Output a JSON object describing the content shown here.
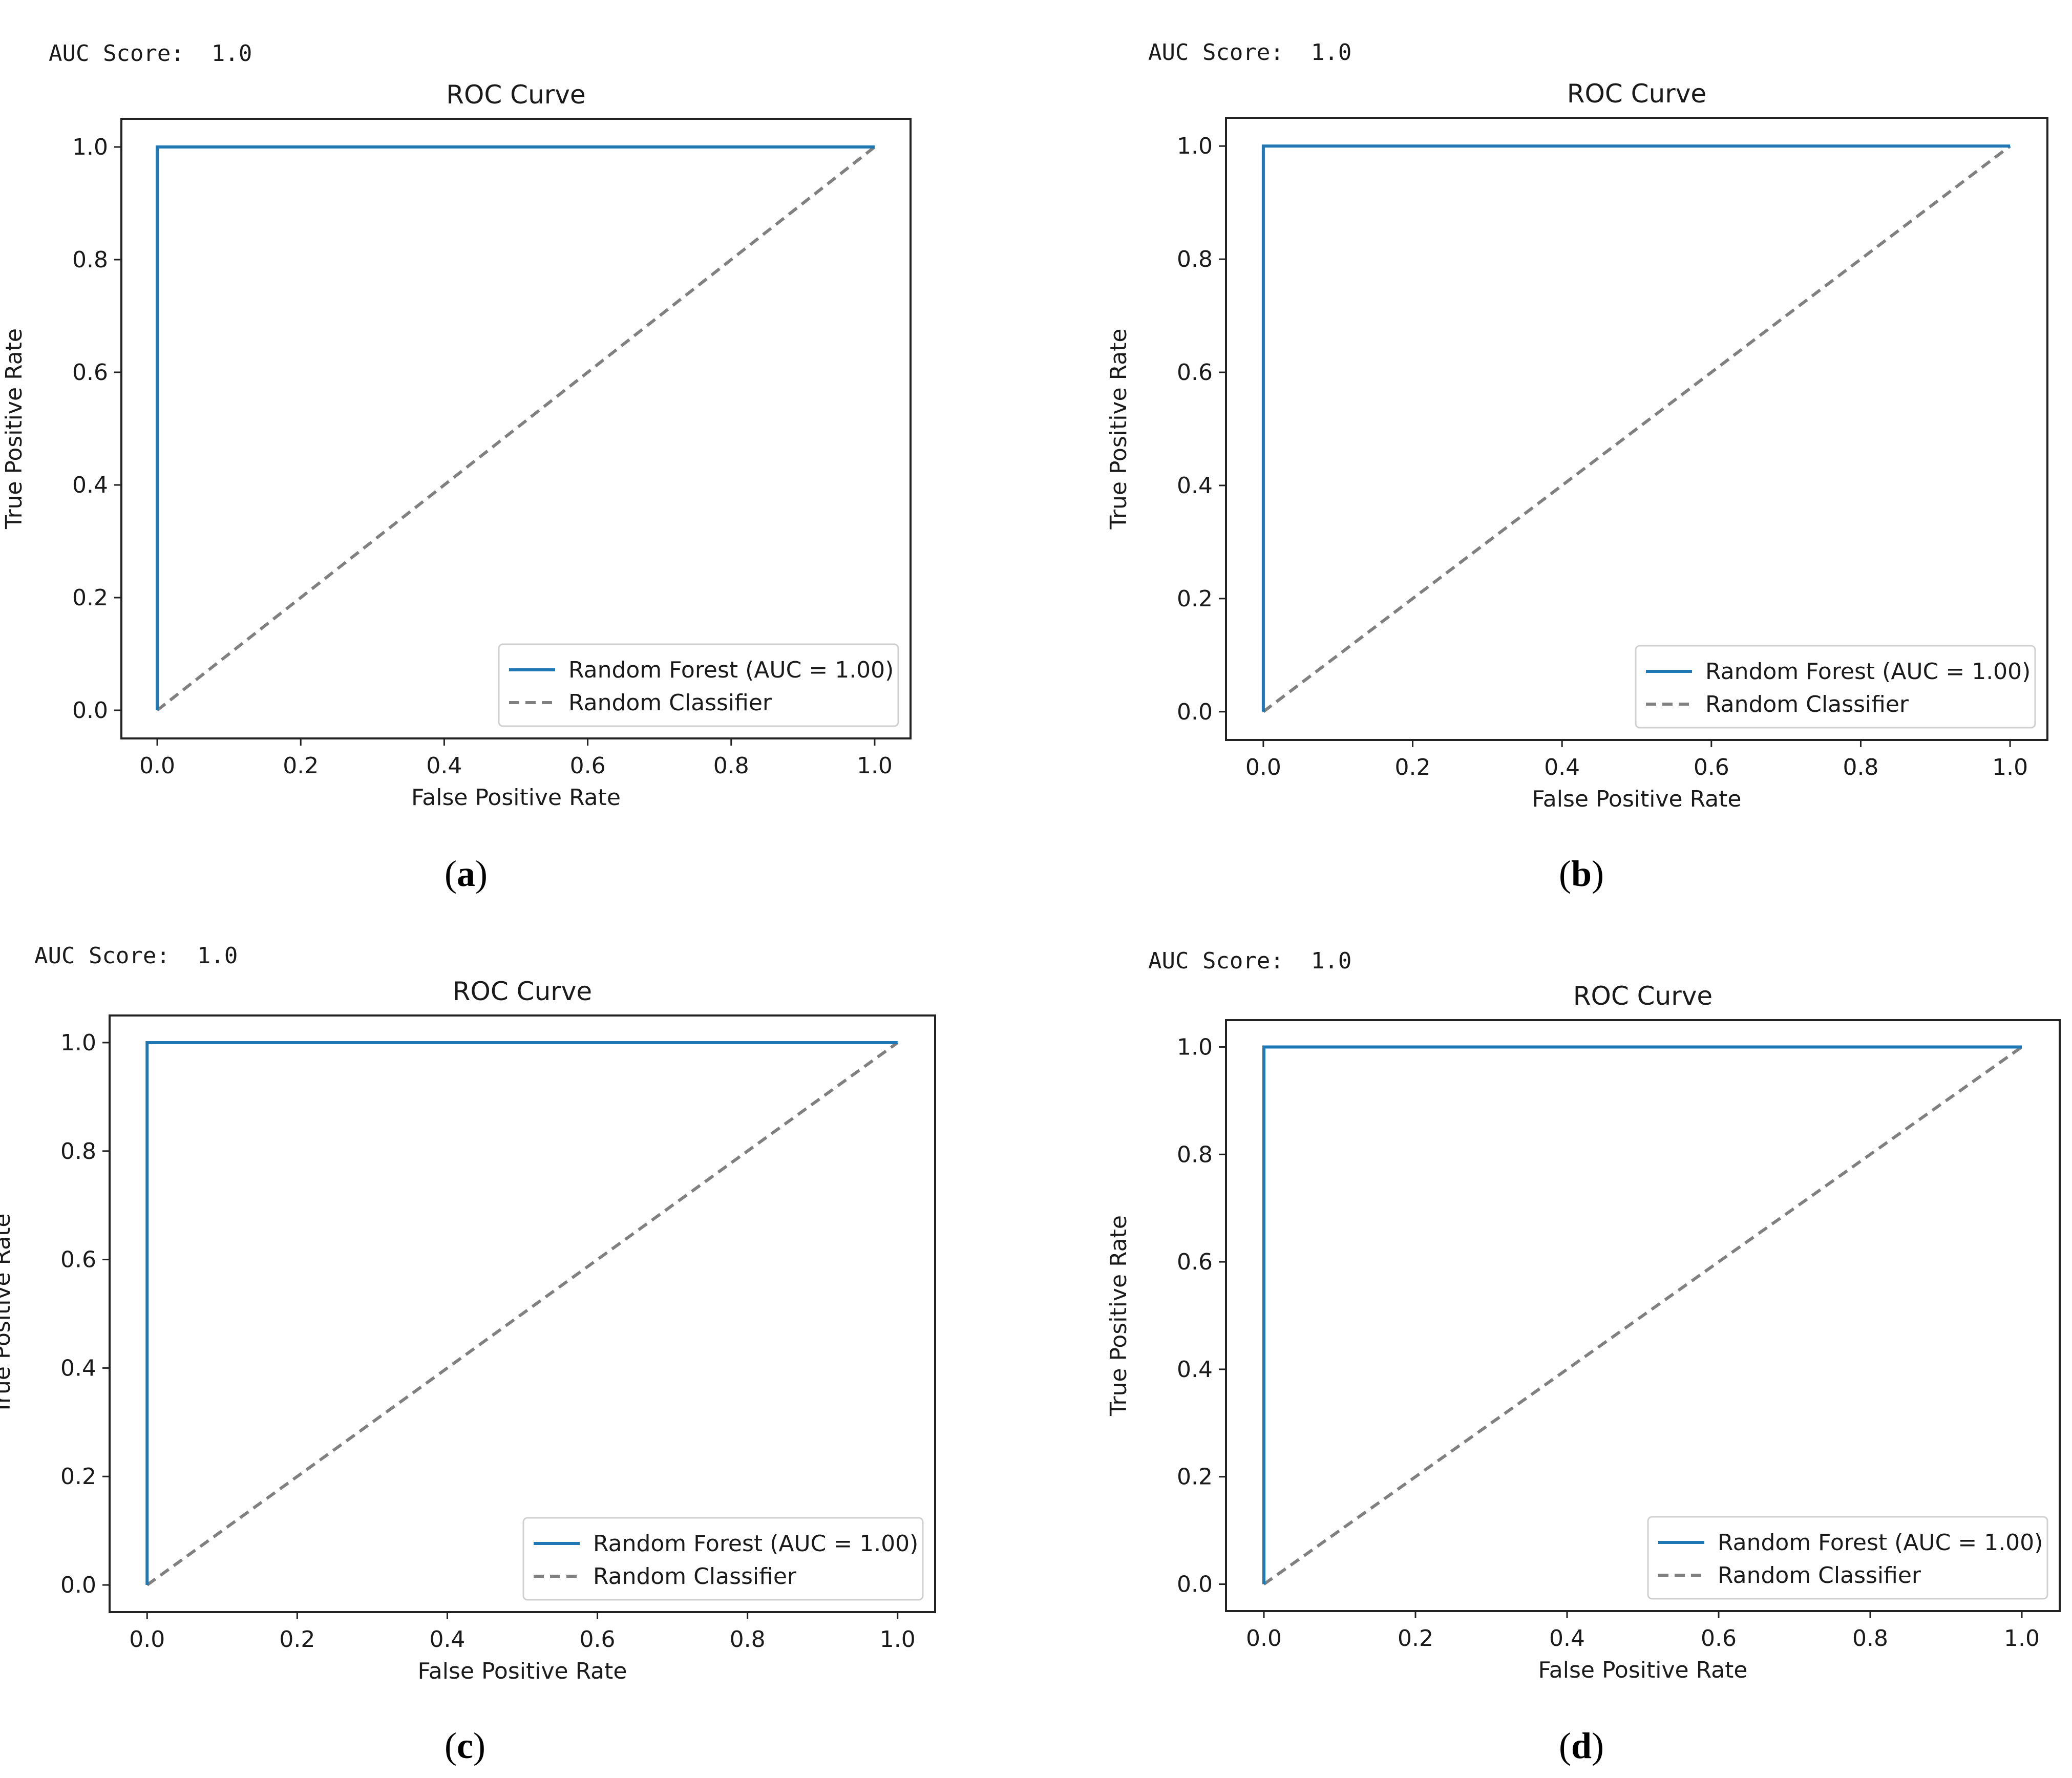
{
  "panels": [
    {
      "id": "a",
      "auc_label": "AUC Score:",
      "auc_value": "1.0",
      "caption_open": "(",
      "caption_letter": "a",
      "caption_close": ")"
    },
    {
      "id": "b",
      "auc_label": "AUC Score:",
      "auc_value": "1.0",
      "caption_open": "(",
      "caption_letter": "b",
      "caption_close": ")"
    },
    {
      "id": "c",
      "auc_label": "AUC Score:",
      "auc_value": "1.0",
      "caption_open": "(",
      "caption_letter": "c",
      "caption_close": ")"
    },
    {
      "id": "d",
      "auc_label": "AUC Score:",
      "auc_value": "1.0",
      "caption_open": "(",
      "caption_letter": "d",
      "caption_close": ")"
    }
  ],
  "chart_data": [
    {
      "type": "line",
      "title": "ROC Curve",
      "xlabel": "False Positive Rate",
      "ylabel": "True Positive Rate",
      "xlim": [
        -0.05,
        1.05
      ],
      "ylim": [
        -0.05,
        1.05
      ],
      "xticks": [
        "0.0",
        "0.2",
        "0.4",
        "0.6",
        "0.8",
        "1.0"
      ],
      "yticks": [
        "0.0",
        "0.2",
        "0.4",
        "0.6",
        "0.8",
        "1.0"
      ],
      "legend_position": "lower-right",
      "series": [
        {
          "name": "Random Forest (AUC = 1.00)",
          "style": "solid",
          "color": "#1f77b4",
          "x": [
            0.0,
            0.0,
            1.0
          ],
          "y": [
            0.0,
            1.0,
            1.0
          ]
        },
        {
          "name": "Random Classifier",
          "style": "dashed",
          "color": "#808080",
          "x": [
            0.0,
            1.0
          ],
          "y": [
            0.0,
            1.0
          ]
        }
      ]
    },
    {
      "type": "line",
      "title": "ROC Curve",
      "xlabel": "False Positive Rate",
      "ylabel": "True Positive Rate",
      "xlim": [
        -0.05,
        1.05
      ],
      "ylim": [
        -0.05,
        1.05
      ],
      "xticks": [
        "0.0",
        "0.2",
        "0.4",
        "0.6",
        "0.8",
        "1.0"
      ],
      "yticks": [
        "0.0",
        "0.2",
        "0.4",
        "0.6",
        "0.8",
        "1.0"
      ],
      "legend_position": "lower-right",
      "series": [
        {
          "name": "Random Forest (AUC = 1.00)",
          "style": "solid",
          "color": "#1f77b4",
          "x": [
            0.0,
            0.0,
            1.0
          ],
          "y": [
            0.0,
            1.0,
            1.0
          ]
        },
        {
          "name": "Random Classifier",
          "style": "dashed",
          "color": "#808080",
          "x": [
            0.0,
            1.0
          ],
          "y": [
            0.0,
            1.0
          ]
        }
      ]
    },
    {
      "type": "line",
      "title": "ROC Curve",
      "xlabel": "False Positive Rate",
      "ylabel": "True Positive Rate",
      "xlim": [
        -0.05,
        1.05
      ],
      "ylim": [
        -0.05,
        1.05
      ],
      "xticks": [
        "0.0",
        "0.2",
        "0.4",
        "0.6",
        "0.8",
        "1.0"
      ],
      "yticks": [
        "0.0",
        "0.2",
        "0.4",
        "0.6",
        "0.8",
        "1.0"
      ],
      "legend_position": "lower-right",
      "series": [
        {
          "name": "Random Forest (AUC = 1.00)",
          "style": "solid",
          "color": "#1f77b4",
          "x": [
            0.0,
            0.0,
            1.0
          ],
          "y": [
            0.0,
            1.0,
            1.0
          ]
        },
        {
          "name": "Random Classifier",
          "style": "dashed",
          "color": "#808080",
          "x": [
            0.0,
            1.0
          ],
          "y": [
            0.0,
            1.0
          ]
        }
      ]
    },
    {
      "type": "line",
      "title": "ROC Curve",
      "xlabel": "False Positive Rate",
      "ylabel": "True Positive Rate",
      "xlim": [
        -0.05,
        1.05
      ],
      "ylim": [
        -0.05,
        1.05
      ],
      "xticks": [
        "0.0",
        "0.2",
        "0.4",
        "0.6",
        "0.8",
        "1.0"
      ],
      "yticks": [
        "0.0",
        "0.2",
        "0.4",
        "0.6",
        "0.8",
        "1.0"
      ],
      "legend_position": "lower-right",
      "series": [
        {
          "name": "Random Forest (AUC = 1.00)",
          "style": "solid",
          "color": "#1f77b4",
          "x": [
            0.0,
            0.0,
            1.0
          ],
          "y": [
            0.0,
            1.0,
            1.0
          ]
        },
        {
          "name": "Random Classifier",
          "style": "dashed",
          "color": "#808080",
          "x": [
            0.0,
            1.0
          ],
          "y": [
            0.0,
            1.0
          ]
        }
      ]
    }
  ]
}
